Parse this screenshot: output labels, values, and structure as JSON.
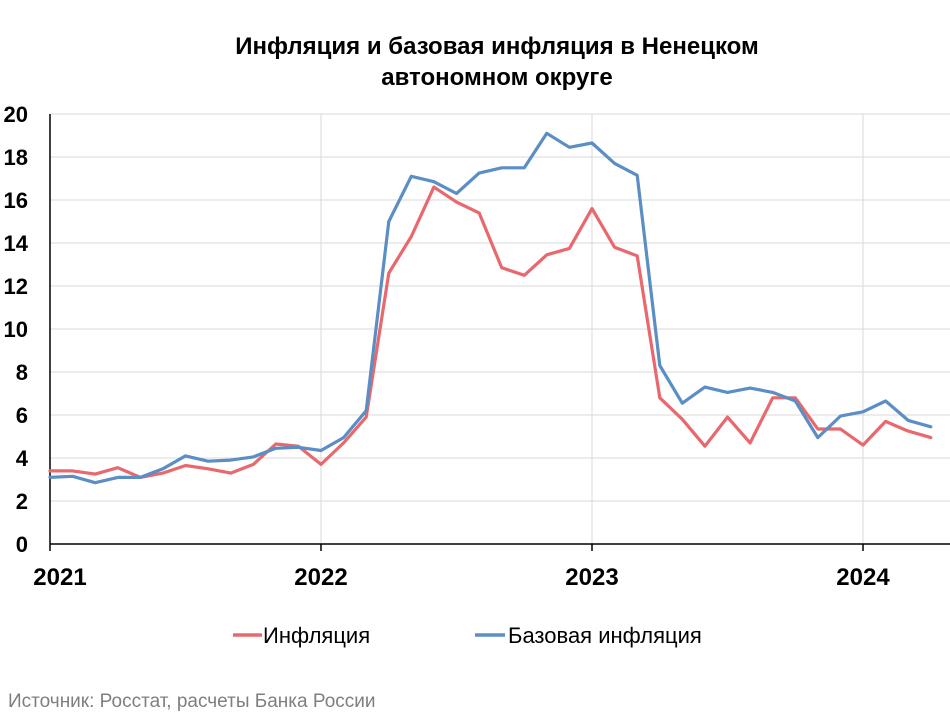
{
  "chart_data": {
    "type": "line",
    "title_lines": [
      "Инфляция и базовая инфляция в Ненецком",
      "автономном округе"
    ],
    "xlabel": "",
    "ylabel": "",
    "ylim": [
      0,
      20
    ],
    "yticks": [
      0,
      2,
      4,
      6,
      8,
      10,
      12,
      14,
      16,
      18,
      20
    ],
    "xticks": [
      {
        "label": "2021",
        "date": "2021-01"
      },
      {
        "label": "2022",
        "date": "2022-01"
      },
      {
        "label": "2023",
        "date": "2023-01"
      },
      {
        "label": "2024",
        "date": "2024-01"
      }
    ],
    "x": [
      "2021-01",
      "2021-02",
      "2021-03",
      "2021-04",
      "2021-05",
      "2021-06",
      "2021-07",
      "2021-08",
      "2021-09",
      "2021-10",
      "2021-11",
      "2021-12",
      "2022-01",
      "2022-02",
      "2022-03",
      "2022-04",
      "2022-05",
      "2022-06",
      "2022-07",
      "2022-08",
      "2022-09",
      "2022-10",
      "2022-11",
      "2022-12",
      "2023-01",
      "2023-02",
      "2023-03",
      "2023-04",
      "2023-05",
      "2023-06",
      "2023-07",
      "2023-08",
      "2023-09",
      "2023-10",
      "2023-11",
      "2023-12",
      "2024-01",
      "2024-02",
      "2024-03",
      "2024-04"
    ],
    "grid": true,
    "legend_position": "bottom",
    "series": [
      {
        "name": "Инфляция",
        "color": "#e8686d",
        "values": [
          3.4,
          3.4,
          3.25,
          3.55,
          3.1,
          3.3,
          3.65,
          3.5,
          3.3,
          3.7,
          4.65,
          4.55,
          3.7,
          4.7,
          5.9,
          12.6,
          14.3,
          16.6,
          15.9,
          15.4,
          12.85,
          12.5,
          13.45,
          13.75,
          15.6,
          13.8,
          13.4,
          6.8,
          5.8,
          4.55,
          5.9,
          4.7,
          6.8,
          6.8,
          5.35,
          5.35,
          4.6,
          5.7,
          5.25,
          4.95
        ]
      },
      {
        "name": "Базовая инфляция",
        "color": "#5b8ec4",
        "values": [
          3.1,
          3.15,
          2.85,
          3.1,
          3.1,
          3.5,
          4.1,
          3.85,
          3.9,
          4.05,
          4.45,
          4.5,
          4.35,
          4.95,
          6.2,
          15.0,
          17.1,
          16.85,
          16.3,
          17.25,
          17.5,
          17.5,
          19.1,
          18.45,
          18.65,
          17.7,
          17.15,
          8.3,
          6.55,
          7.3,
          7.05,
          7.25,
          7.05,
          6.65,
          4.95,
          5.95,
          6.15,
          6.65,
          5.75,
          5.45
        ]
      }
    ],
    "source": "Источник: Росстат, расчеты Банка России"
  }
}
